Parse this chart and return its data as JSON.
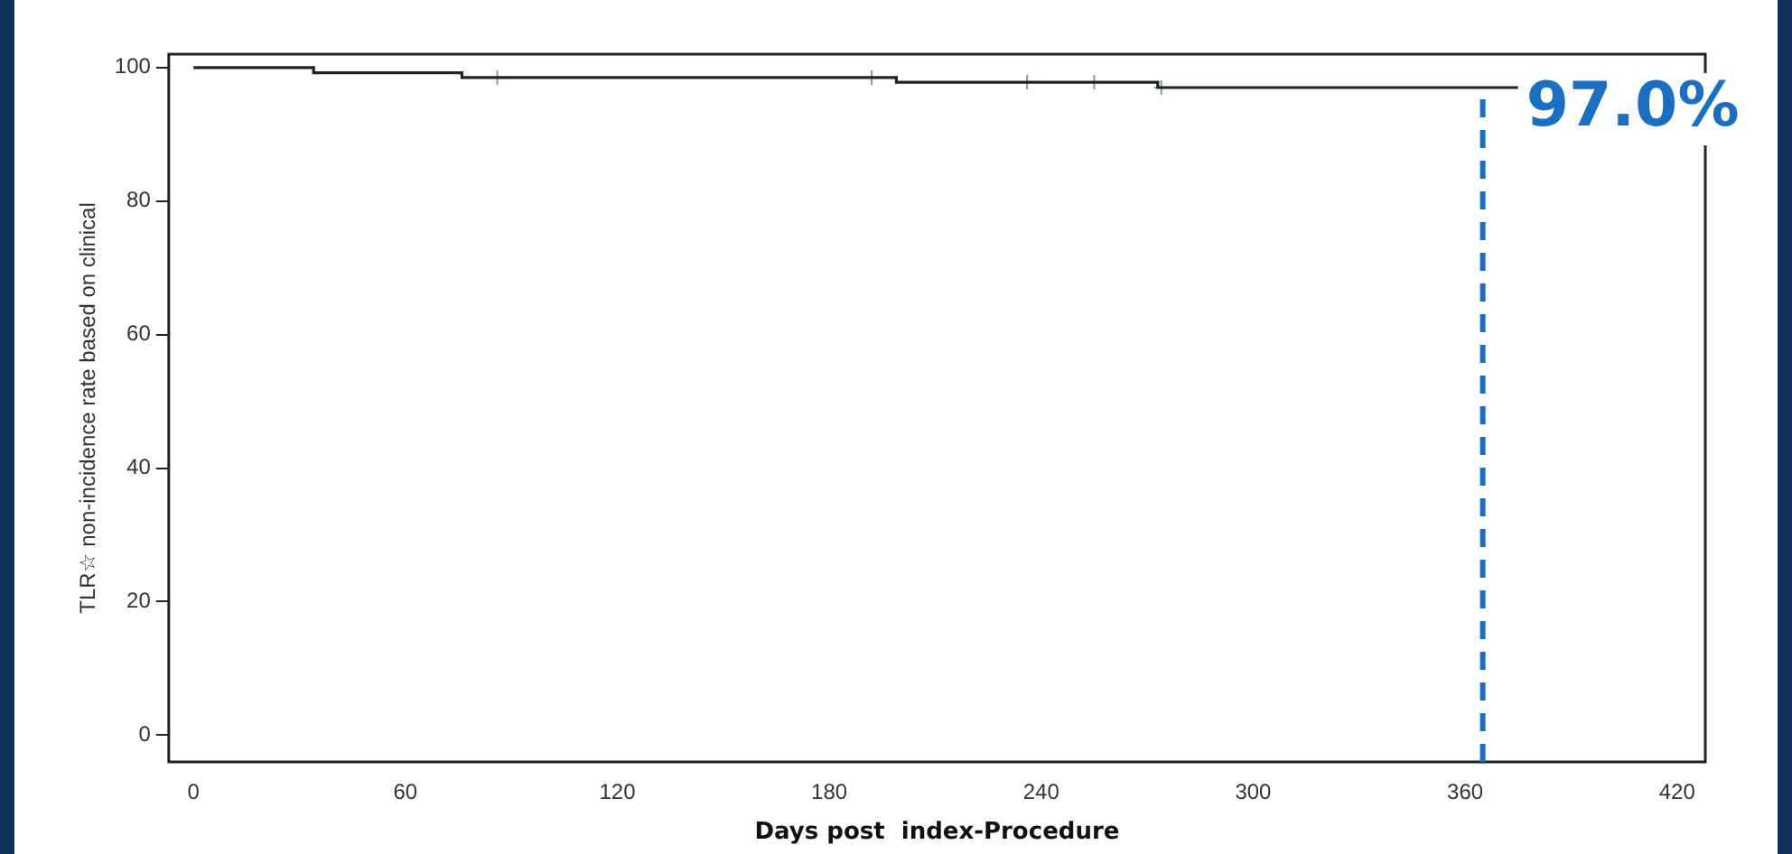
{
  "chart_data": {
    "type": "step",
    "xlabel": "Days post  index-Procedure",
    "ylabel": "TLR☆ non-incidence rate based on clinical",
    "xlim": [
      -7,
      428
    ],
    "xticks": [
      0,
      60,
      120,
      180,
      240,
      300,
      360,
      420
    ],
    "ylim": [
      -4,
      102
    ],
    "yticks": [
      0,
      20,
      40,
      60,
      80,
      100
    ],
    "grid": false,
    "legend": false,
    "series": [
      {
        "color": "#222222",
        "x": [
          0,
          34,
          76,
          199,
          273,
          375
        ],
        "values": [
          100,
          99.2,
          98.5,
          97.8,
          97.0,
          97.0
        ],
        "marker": "none"
      },
      {
        "type": "scatter",
        "color": "#7f9f9f",
        "x": [
          86,
          192,
          236,
          255,
          274
        ],
        "values": [
          98.5,
          98.5,
          97.8,
          97.8,
          97.0
        ],
        "marker": "cross"
      }
    ],
    "ref_lines": [
      {
        "axis": "x",
        "value": 365,
        "color": "#1a6fc0",
        "line_style": "dashed"
      }
    ],
    "annotations": [
      {
        "text": "97.0%",
        "x": 365,
        "y": 97
      }
    ]
  }
}
